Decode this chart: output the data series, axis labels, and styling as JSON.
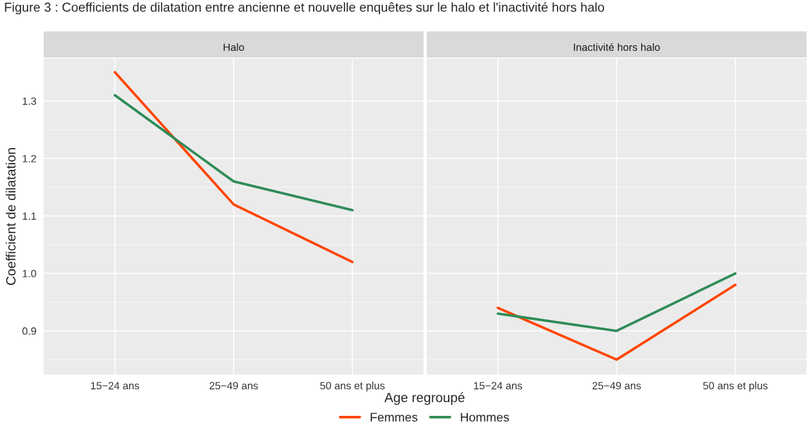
{
  "chart_data": [
    {
      "type": "line",
      "title": "Halo",
      "annotations": [
        "Figure 3 : Coefficients de dilatation entre ancienne et nouvelle enquêtes sur le halo et l'inactivité hors halo"
      ],
      "xlabel": "Age regroupé",
      "ylabel": "Coefficient de dilatation",
      "categories": [
        "15−24 ans",
        "25−49 ans",
        "50 ans et plus"
      ],
      "ylim": [
        0.824,
        1.374
      ],
      "yticks": [
        0.9,
        {
          "value": 1.0,
          "label": "1.0"
        },
        1.1,
        1.2,
        1.3
      ],
      "grid": true,
      "legend": "bottom",
      "series": [
        {
          "name": "Femmes",
          "color": "#ff4500",
          "values": [
            1.35,
            1.12,
            1.02
          ]
        },
        {
          "name": "Hommes",
          "color": "#2e8b57",
          "values": [
            1.31,
            1.16,
            1.11
          ]
        }
      ]
    },
    {
      "type": "line",
      "title": "Inactivité hors halo",
      "categories": [
        "15−24 ans",
        "25−49 ans",
        "50 ans et plus"
      ],
      "ylim": [
        0.824,
        1.374
      ],
      "yticks": [
        0.9,
        1.0,
        1.1,
        1.2,
        1.3
      ],
      "grid": true,
      "tick_labels": "x",
      "series": [
        {
          "name": "Femmes",
          "color": "#ff4500",
          "values": [
            0.94,
            0.85,
            0.98
          ]
        },
        {
          "name": "Hommes",
          "color": "#2e8b57",
          "values": [
            0.93,
            0.9,
            1.0
          ]
        }
      ]
    }
  ]
}
